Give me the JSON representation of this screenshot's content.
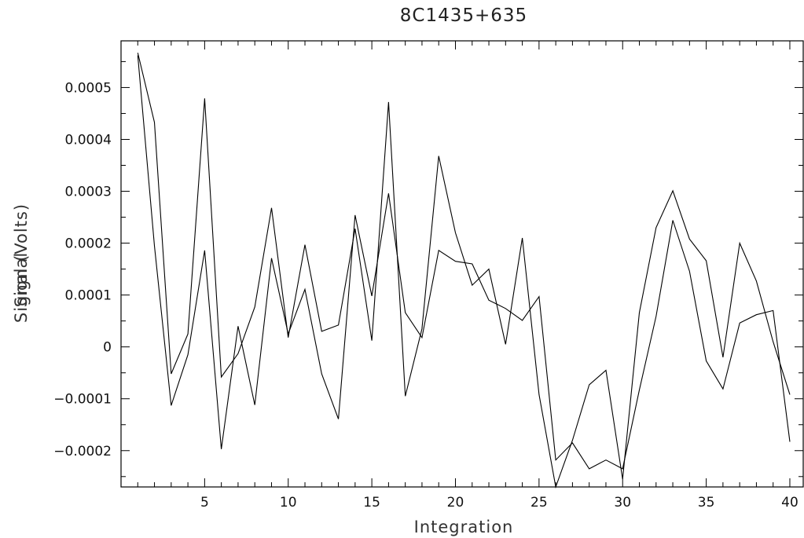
{
  "chart_data": {
    "type": "line",
    "title": "8C1435+635",
    "xlabel": "Integration",
    "ylabel": "Signal (Volts)",
    "ylabel_overlay": "Signal",
    "xlim": [
      0,
      40.8
    ],
    "ylim": [
      -0.00027,
      0.00059
    ],
    "x_ticks": [
      5,
      10,
      15,
      20,
      25,
      30,
      35,
      40
    ],
    "y_ticks": [
      -0.0002,
      -0.0001,
      0,
      0.0001,
      0.0002,
      0.0003,
      0.0004,
      0.0005
    ],
    "y_tick_labels": [
      "−0.0002",
      "−0.0001",
      "0",
      "0.0001",
      "0.0002",
      "0.0003",
      "0.0004",
      "0.0005"
    ],
    "grid": false,
    "x": [
      1,
      2,
      3,
      4,
      5,
      6,
      7,
      8,
      9,
      10,
      11,
      12,
      13,
      14,
      15,
      16,
      17,
      18,
      19,
      20,
      21,
      22,
      23,
      24,
      25,
      26,
      27,
      28,
      29,
      30,
      31,
      32,
      33,
      34,
      35,
      36,
      37,
      38,
      39,
      40
    ],
    "series": [
      {
        "values": [
          0.000567,
          0.000433,
          -5.2e-05,
          2.5e-05,
          0.000479,
          -5.8e-05,
          -1.3e-05,
          7.7e-05,
          0.000268,
          1.8e-05,
          0.000197,
          3e-05,
          4.2e-05,
          0.000228,
          1.2e-05,
          0.000472,
          -9.5e-05,
          3.5e-05,
          0.000368,
          0.00022,
          0.000119,
          0.00015,
          5e-06,
          0.00021,
          -9.2e-05,
          -0.00027,
          -0.00018,
          -7.3e-05,
          -4.5e-05,
          -0.000255,
          6.6e-05,
          0.00023,
          0.000301,
          0.000208,
          0.000166,
          -2e-05,
          0.0002,
          0.000127,
          1e-05,
          -9.2e-05
        ]
      },
      {
        "values": [
          0.000562,
          0.000195,
          -0.000113,
          -1.5e-05,
          0.000186,
          -0.000197,
          4e-05,
          -0.000112,
          0.000171,
          2.5e-05,
          0.000111,
          -5.2e-05,
          -0.000139,
          0.000254,
          9.8e-05,
          0.000296,
          6.6e-05,
          1.8e-05,
          0.000186,
          0.000165,
          0.00016,
          9e-05,
          7.4e-05,
          5.1e-05,
          9.7e-05,
          -0.000218,
          -0.000185,
          -0.000235,
          -0.000218,
          -0.000235,
          -8.3e-05,
          5.9e-05,
          0.000244,
          0.000146,
          -2.7e-05,
          -8.1e-05,
          4.6e-05,
          6.2e-05,
          7e-05,
          -0.000183
        ]
      }
    ]
  }
}
